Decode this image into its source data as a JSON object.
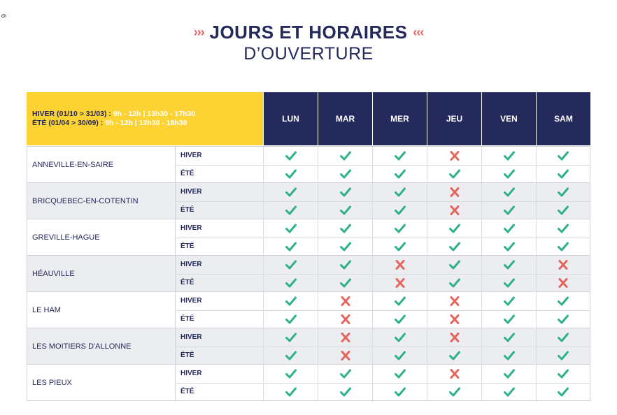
{
  "page_number": "6",
  "title": {
    "arrows_left": "›››",
    "line1": "JOURS ET HORAIRES",
    "arrows_right": "‹‹‹",
    "line2": "D’OUVERTURE"
  },
  "legend": {
    "winter_label": "HIVER (01/10 > 31/03) : ",
    "winter_hours": "9h - 12h | 13h30 - 17h30",
    "summer_label": "ÉTÉ (01/04 > 30/09) : ",
    "summer_hours": "9h - 12h | 13h30 - 18h30"
  },
  "days": [
    "LUN",
    "MAR",
    "MER",
    "JEU",
    "VEN",
    "SAM"
  ],
  "season_labels": [
    "HIVER",
    "ÉTÉ"
  ],
  "colors": {
    "navy": "#242a5c",
    "yellow": "#fdd233",
    "check": "#2fb08c",
    "cross": "#e5645e",
    "accent": "#e5645e"
  },
  "towns": [
    {
      "name": "ANNEVILLE-EN-SAIRE",
      "hiver": [
        1,
        1,
        1,
        0,
        1,
        1
      ],
      "ete": [
        1,
        1,
        1,
        1,
        1,
        1
      ]
    },
    {
      "name": "BRICQUEBEC-EN-COTENTIN",
      "hiver": [
        1,
        1,
        1,
        0,
        1,
        1
      ],
      "ete": [
        1,
        1,
        1,
        0,
        1,
        1
      ]
    },
    {
      "name": "GREVILLE-HAGUE",
      "hiver": [
        1,
        1,
        1,
        1,
        1,
        1
      ],
      "ete": [
        1,
        1,
        1,
        1,
        1,
        1
      ]
    },
    {
      "name": "HÉAUVILLE",
      "hiver": [
        1,
        1,
        0,
        1,
        1,
        0
      ],
      "ete": [
        1,
        1,
        0,
        1,
        1,
        0
      ]
    },
    {
      "name": "LE HAM",
      "hiver": [
        1,
        0,
        1,
        0,
        1,
        1
      ],
      "ete": [
        1,
        0,
        1,
        0,
        1,
        1
      ]
    },
    {
      "name": "LES MOITIERS D'ALLONNE",
      "hiver": [
        1,
        0,
        1,
        0,
        1,
        1
      ],
      "ete": [
        1,
        0,
        1,
        1,
        1,
        1
      ]
    },
    {
      "name": "LES PIEUX",
      "hiver": [
        1,
        1,
        1,
        0,
        1,
        1
      ],
      "ete": [
        1,
        1,
        1,
        1,
        1,
        1
      ]
    }
  ]
}
